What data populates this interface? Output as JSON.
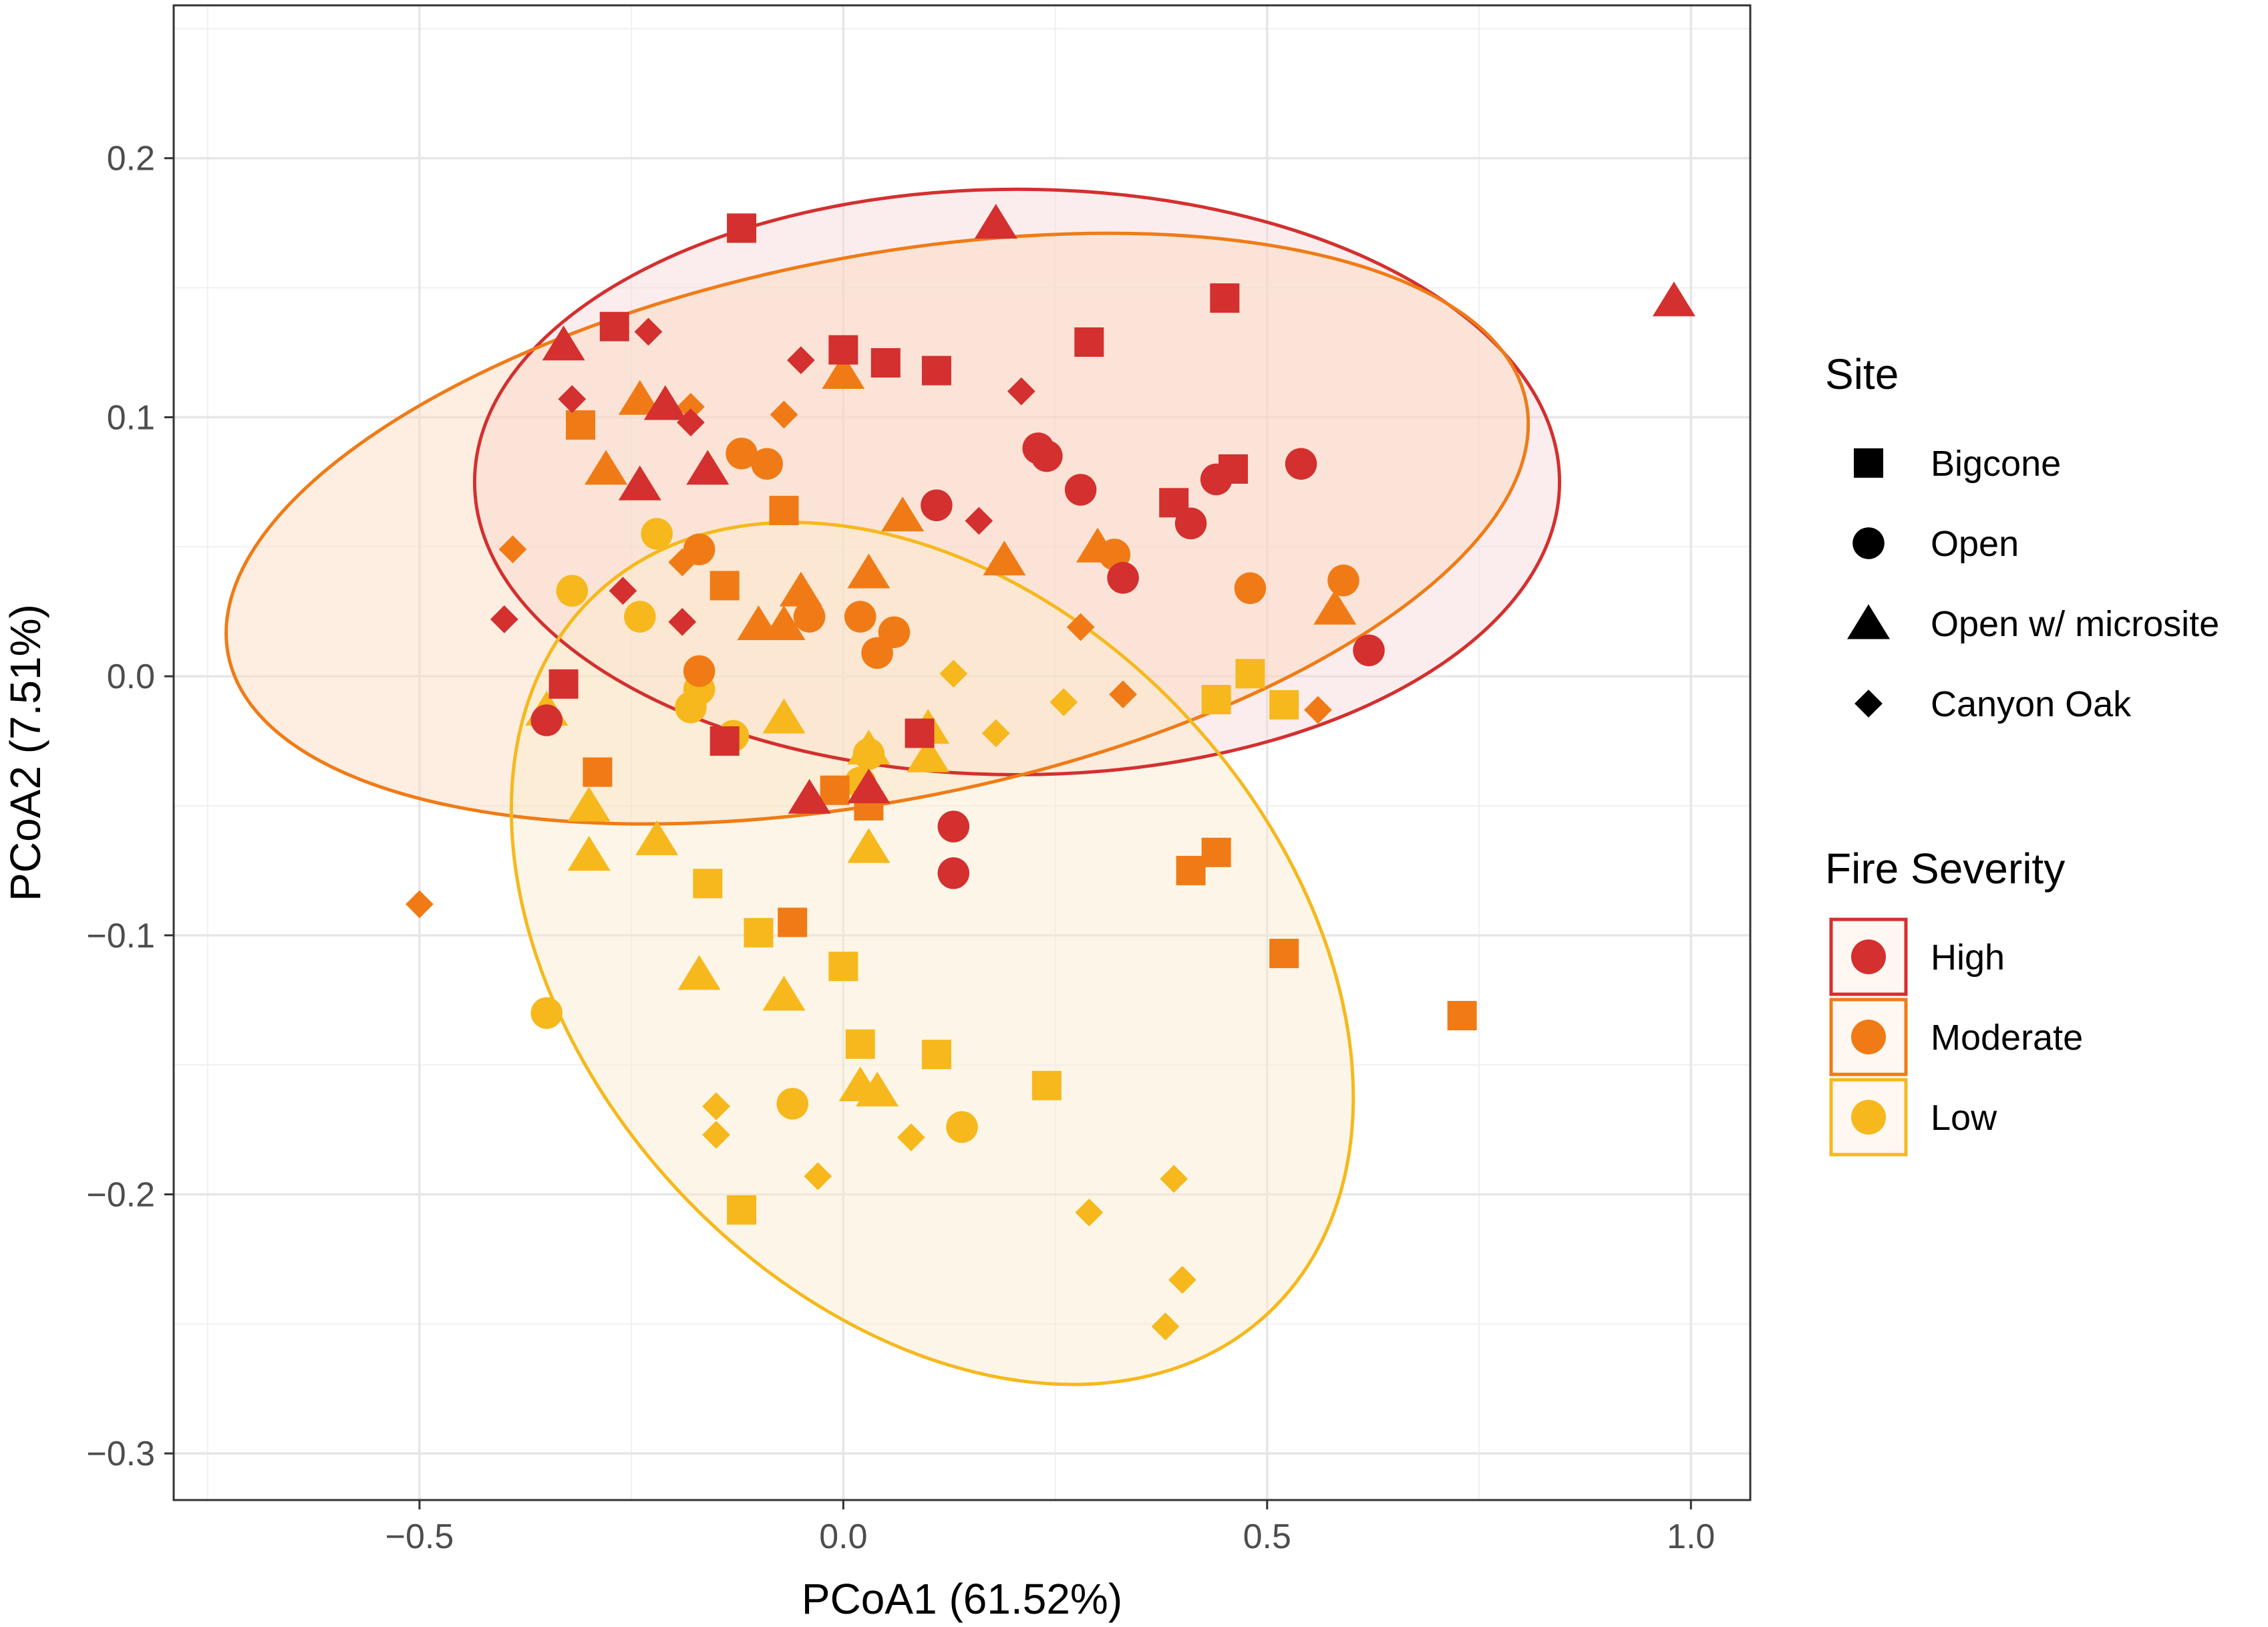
{
  "chart_data": {
    "type": "scatter",
    "xlabel": "PCoA1 (61.52%)",
    "ylabel": "PCoA2 (7.51%)",
    "xlim": [
      -0.79,
      1.07
    ],
    "ylim": [
      -0.318,
      0.259
    ],
    "xticks": [
      -0.5,
      0.0,
      0.5,
      1.0
    ],
    "xtick_labels": [
      "−0.5",
      "0.0",
      "0.5",
      "1.0"
    ],
    "yticks": [
      -0.3,
      -0.2,
      -0.1,
      0.0,
      0.1,
      0.2
    ],
    "ytick_labels": [
      "−0.3",
      "−0.2",
      "−0.1",
      "0.0",
      "0.1",
      "0.2"
    ],
    "grid": true,
    "legend_site": {
      "title": "Site",
      "entries": [
        {
          "shape": "square",
          "label": "Bigcone"
        },
        {
          "shape": "circle",
          "label": "Open"
        },
        {
          "shape": "triangle",
          "label": "Open w/ microsite"
        },
        {
          "shape": "diamond",
          "label": "Canyon Oak"
        }
      ]
    },
    "legend_severity": {
      "title": "Fire Severity",
      "entries": [
        {
          "label": "High",
          "color": "#D3302F"
        },
        {
          "label": "Moderate",
          "color": "#F07B16"
        },
        {
          "label": "Low",
          "color": "#F6B81C"
        }
      ]
    },
    "ellipses": [
      {
        "group": "High",
        "center": [
          0.205,
          0.075
        ],
        "radii": [
          0.64,
          0.113
        ],
        "rotation_deg": 0,
        "stroke": "#D3302F",
        "fill": "#F6D8D8"
      },
      {
        "group": "Moderate",
        "center": [
          0.04,
          0.057
        ],
        "radii": [
          0.78,
          0.105
        ],
        "rotation_deg": -11,
        "stroke": "#F07B16",
        "fill": "#FAD9BD"
      },
      {
        "group": "Low",
        "center": [
          0.105,
          -0.107
        ],
        "radii": [
          0.41,
          0.19
        ],
        "rotation_deg": -43,
        "stroke": "#F6B81C",
        "fill": "#FBEBCB"
      }
    ],
    "series": [
      {
        "name": "High",
        "color": "#D3302F",
        "points": [
          {
            "x": -0.12,
            "y": 0.173,
            "shape": "square"
          },
          {
            "x": 0.45,
            "y": 0.146,
            "shape": "square"
          },
          {
            "x": -0.27,
            "y": 0.135,
            "shape": "square"
          },
          {
            "x": 0.29,
            "y": 0.129,
            "shape": "square"
          },
          {
            "x": 0.0,
            "y": 0.126,
            "shape": "square"
          },
          {
            "x": 0.05,
            "y": 0.121,
            "shape": "square"
          },
          {
            "x": 0.11,
            "y": 0.118,
            "shape": "square"
          },
          {
            "x": 0.46,
            "y": 0.08,
            "shape": "square"
          },
          {
            "x": 0.39,
            "y": 0.067,
            "shape": "square"
          },
          {
            "x": -0.33,
            "y": -0.003,
            "shape": "square"
          },
          {
            "x": -0.14,
            "y": -0.025,
            "shape": "square"
          },
          {
            "x": 0.09,
            "y": -0.022,
            "shape": "square"
          },
          {
            "x": 0.18,
            "y": 0.175,
            "shape": "triangle"
          },
          {
            "x": 0.98,
            "y": 0.145,
            "shape": "triangle"
          },
          {
            "x": -0.33,
            "y": 0.128,
            "shape": "triangle"
          },
          {
            "x": -0.21,
            "y": 0.105,
            "shape": "triangle"
          },
          {
            "x": -0.16,
            "y": 0.08,
            "shape": "triangle"
          },
          {
            "x": -0.24,
            "y": 0.074,
            "shape": "triangle"
          },
          {
            "x": -0.04,
            "y": -0.047,
            "shape": "triangle"
          },
          {
            "x": 0.03,
            "y": -0.043,
            "shape": "triangle"
          },
          {
            "x": 0.23,
            "y": 0.088,
            "shape": "circle"
          },
          {
            "x": 0.24,
            "y": 0.085,
            "shape": "circle"
          },
          {
            "x": 0.54,
            "y": 0.082,
            "shape": "circle"
          },
          {
            "x": 0.44,
            "y": 0.076,
            "shape": "circle"
          },
          {
            "x": 0.28,
            "y": 0.072,
            "shape": "circle"
          },
          {
            "x": 0.11,
            "y": 0.066,
            "shape": "circle"
          },
          {
            "x": 0.41,
            "y": 0.059,
            "shape": "circle"
          },
          {
            "x": 0.33,
            "y": 0.038,
            "shape": "circle"
          },
          {
            "x": 0.62,
            "y": 0.01,
            "shape": "circle"
          },
          {
            "x": -0.35,
            "y": -0.017,
            "shape": "circle"
          },
          {
            "x": 0.13,
            "y": -0.058,
            "shape": "circle"
          },
          {
            "x": 0.13,
            "y": -0.076,
            "shape": "circle"
          },
          {
            "x": -0.23,
            "y": 0.133,
            "shape": "diamond"
          },
          {
            "x": -0.05,
            "y": 0.122,
            "shape": "diamond"
          },
          {
            "x": 0.21,
            "y": 0.11,
            "shape": "diamond"
          },
          {
            "x": -0.32,
            "y": 0.107,
            "shape": "diamond"
          },
          {
            "x": -0.18,
            "y": 0.098,
            "shape": "diamond"
          },
          {
            "x": 0.16,
            "y": 0.06,
            "shape": "diamond"
          },
          {
            "x": -0.26,
            "y": 0.033,
            "shape": "diamond"
          },
          {
            "x": -0.4,
            "y": 0.022,
            "shape": "diamond"
          },
          {
            "x": -0.19,
            "y": 0.021,
            "shape": "diamond"
          }
        ]
      },
      {
        "name": "Moderate",
        "color": "#F07B16",
        "points": [
          {
            "x": -0.31,
            "y": 0.097,
            "shape": "square"
          },
          {
            "x": -0.07,
            "y": 0.064,
            "shape": "square"
          },
          {
            "x": -0.14,
            "y": 0.035,
            "shape": "square"
          },
          {
            "x": -0.29,
            "y": -0.037,
            "shape": "square"
          },
          {
            "x": -0.01,
            "y": -0.044,
            "shape": "square"
          },
          {
            "x": 0.03,
            "y": -0.05,
            "shape": "square"
          },
          {
            "x": 0.44,
            "y": -0.068,
            "shape": "square"
          },
          {
            "x": 0.41,
            "y": -0.075,
            "shape": "square"
          },
          {
            "x": -0.06,
            "y": -0.095,
            "shape": "square"
          },
          {
            "x": 0.52,
            "y": -0.107,
            "shape": "square"
          },
          {
            "x": 0.73,
            "y": -0.131,
            "shape": "square"
          },
          {
            "x": -0.24,
            "y": 0.107,
            "shape": "triangle"
          },
          {
            "x": 0.0,
            "y": 0.117,
            "shape": "triangle"
          },
          {
            "x": -0.28,
            "y": 0.08,
            "shape": "triangle"
          },
          {
            "x": 0.07,
            "y": 0.062,
            "shape": "triangle"
          },
          {
            "x": 0.19,
            "y": 0.045,
            "shape": "triangle"
          },
          {
            "x": 0.3,
            "y": 0.05,
            "shape": "triangle"
          },
          {
            "x": 0.03,
            "y": 0.04,
            "shape": "triangle"
          },
          {
            "x": -0.05,
            "y": 0.033,
            "shape": "triangle"
          },
          {
            "x": -0.1,
            "y": 0.02,
            "shape": "triangle"
          },
          {
            "x": -0.07,
            "y": 0.02,
            "shape": "triangle"
          },
          {
            "x": 0.58,
            "y": 0.026,
            "shape": "triangle"
          },
          {
            "x": -0.12,
            "y": 0.086,
            "shape": "circle"
          },
          {
            "x": -0.09,
            "y": 0.082,
            "shape": "circle"
          },
          {
            "x": -0.17,
            "y": 0.049,
            "shape": "circle"
          },
          {
            "x": 0.32,
            "y": 0.047,
            "shape": "circle"
          },
          {
            "x": 0.59,
            "y": 0.037,
            "shape": "circle"
          },
          {
            "x": 0.48,
            "y": 0.034,
            "shape": "circle"
          },
          {
            "x": -0.04,
            "y": 0.023,
            "shape": "circle"
          },
          {
            "x": 0.02,
            "y": 0.023,
            "shape": "circle"
          },
          {
            "x": 0.06,
            "y": 0.017,
            "shape": "circle"
          },
          {
            "x": 0.04,
            "y": 0.009,
            "shape": "circle"
          },
          {
            "x": -0.17,
            "y": 0.002,
            "shape": "circle"
          },
          {
            "x": -0.07,
            "y": 0.101,
            "shape": "diamond"
          },
          {
            "x": -0.18,
            "y": 0.104,
            "shape": "diamond"
          },
          {
            "x": -0.39,
            "y": 0.049,
            "shape": "diamond"
          },
          {
            "x": -0.19,
            "y": 0.044,
            "shape": "diamond"
          },
          {
            "x": 0.28,
            "y": 0.019,
            "shape": "diamond"
          },
          {
            "x": 0.33,
            "y": -0.007,
            "shape": "diamond"
          },
          {
            "x": 0.56,
            "y": -0.013,
            "shape": "diamond"
          },
          {
            "x": -0.5,
            "y": -0.088,
            "shape": "diamond"
          }
        ]
      },
      {
        "name": "Low",
        "color": "#F6B81C",
        "points": [
          {
            "x": 0.48,
            "y": 0.001,
            "shape": "square"
          },
          {
            "x": 0.44,
            "y": -0.009,
            "shape": "square"
          },
          {
            "x": 0.52,
            "y": -0.011,
            "shape": "square"
          },
          {
            "x": -0.16,
            "y": -0.08,
            "shape": "square"
          },
          {
            "x": -0.1,
            "y": -0.099,
            "shape": "square"
          },
          {
            "x": 0.0,
            "y": -0.112,
            "shape": "square"
          },
          {
            "x": 0.02,
            "y": -0.142,
            "shape": "square"
          },
          {
            "x": 0.11,
            "y": -0.146,
            "shape": "square"
          },
          {
            "x": 0.24,
            "y": -0.158,
            "shape": "square"
          },
          {
            "x": -0.12,
            "y": -0.206,
            "shape": "square"
          },
          {
            "x": -0.35,
            "y": -0.013,
            "shape": "triangle"
          },
          {
            "x": -0.07,
            "y": -0.016,
            "shape": "triangle"
          },
          {
            "x": 0.1,
            "y": -0.02,
            "shape": "triangle"
          },
          {
            "x": 0.1,
            "y": -0.031,
            "shape": "triangle"
          },
          {
            "x": 0.03,
            "y": -0.028,
            "shape": "triangle"
          },
          {
            "x": -0.3,
            "y": -0.05,
            "shape": "triangle"
          },
          {
            "x": -0.22,
            "y": -0.063,
            "shape": "triangle"
          },
          {
            "x": 0.03,
            "y": -0.066,
            "shape": "triangle"
          },
          {
            "x": -0.3,
            "y": -0.069,
            "shape": "triangle"
          },
          {
            "x": -0.17,
            "y": -0.115,
            "shape": "triangle"
          },
          {
            "x": -0.07,
            "y": -0.123,
            "shape": "triangle"
          },
          {
            "x": 0.04,
            "y": -0.16,
            "shape": "triangle"
          },
          {
            "x": 0.02,
            "y": -0.158,
            "shape": "triangle"
          },
          {
            "x": -0.22,
            "y": 0.055,
            "shape": "circle"
          },
          {
            "x": -0.32,
            "y": 0.033,
            "shape": "circle"
          },
          {
            "x": -0.24,
            "y": 0.023,
            "shape": "circle"
          },
          {
            "x": -0.17,
            "y": -0.005,
            "shape": "circle"
          },
          {
            "x": -0.18,
            "y": -0.012,
            "shape": "circle"
          },
          {
            "x": -0.13,
            "y": -0.023,
            "shape": "circle"
          },
          {
            "x": 0.03,
            "y": -0.03,
            "shape": "circle"
          },
          {
            "x": 0.02,
            "y": -0.041,
            "shape": "circle"
          },
          {
            "x": -0.35,
            "y": -0.13,
            "shape": "circle"
          },
          {
            "x": -0.06,
            "y": -0.165,
            "shape": "circle"
          },
          {
            "x": 0.14,
            "y": -0.174,
            "shape": "circle"
          },
          {
            "x": 0.13,
            "y": 0.001,
            "shape": "diamond"
          },
          {
            "x": 0.26,
            "y": -0.01,
            "shape": "diamond"
          },
          {
            "x": 0.18,
            "y": -0.022,
            "shape": "diamond"
          },
          {
            "x": -0.15,
            "y": -0.166,
            "shape": "diamond"
          },
          {
            "x": -0.15,
            "y": -0.177,
            "shape": "diamond"
          },
          {
            "x": 0.08,
            "y": -0.178,
            "shape": "diamond"
          },
          {
            "x": -0.03,
            "y": -0.193,
            "shape": "diamond"
          },
          {
            "x": 0.39,
            "y": -0.194,
            "shape": "diamond"
          },
          {
            "x": 0.29,
            "y": -0.207,
            "shape": "diamond"
          },
          {
            "x": 0.4,
            "y": -0.233,
            "shape": "diamond"
          },
          {
            "x": 0.38,
            "y": -0.251,
            "shape": "diamond"
          }
        ]
      }
    ]
  }
}
